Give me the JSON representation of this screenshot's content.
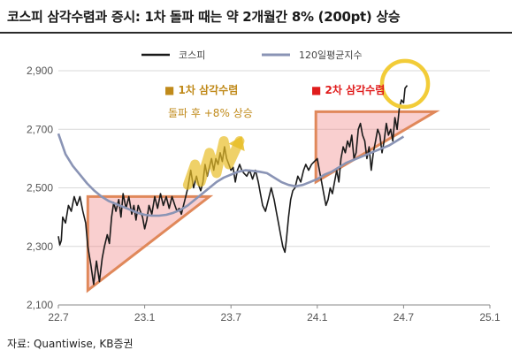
{
  "title": "코스피 삼각수렴과 증시: 1차 돌파 때는 약 2개월간 8% (200pt) 상승",
  "source": "자료: Quantiwise, KB증권",
  "chart_data": {
    "type": "line",
    "x_ticks": [
      {
        "label": "22.7",
        "t": 0
      },
      {
        "label": "23.1",
        "t": 6
      },
      {
        "label": "23.7",
        "t": 12
      },
      {
        "label": "24.1",
        "t": 18
      },
      {
        "label": "24.7",
        "t": 24
      },
      {
        "label": "25.1",
        "t": 30
      }
    ],
    "y_ticks": [
      2100,
      2300,
      2500,
      2700,
      2900
    ],
    "ylim": [
      2100,
      2900
    ],
    "grid": "horizontal",
    "legend_position": "top-right",
    "series": [
      {
        "name": "코스피",
        "color": "#1a1a1a",
        "points": [
          [
            0,
            2335
          ],
          [
            0.1,
            2305
          ],
          [
            0.2,
            2320
          ],
          [
            0.3,
            2400
          ],
          [
            0.5,
            2380
          ],
          [
            0.7,
            2440
          ],
          [
            0.9,
            2420
          ],
          [
            1.1,
            2470
          ],
          [
            1.3,
            2440
          ],
          [
            1.5,
            2470
          ],
          [
            1.7,
            2420
          ],
          [
            1.9,
            2380
          ],
          [
            2.05,
            2300
          ],
          [
            2.25,
            2240
          ],
          [
            2.45,
            2170
          ],
          [
            2.65,
            2250
          ],
          [
            2.85,
            2180
          ],
          [
            3.05,
            2260
          ],
          [
            3.2,
            2300
          ],
          [
            3.4,
            2340
          ],
          [
            3.55,
            2310
          ],
          [
            3.7,
            2400
          ],
          [
            3.85,
            2450
          ],
          [
            4.0,
            2420
          ],
          [
            4.2,
            2460
          ],
          [
            4.35,
            2400
          ],
          [
            4.5,
            2480
          ],
          [
            4.7,
            2430
          ],
          [
            4.9,
            2470
          ],
          [
            5.1,
            2410
          ],
          [
            5.25,
            2440
          ],
          [
            5.4,
            2390
          ],
          [
            5.55,
            2440
          ],
          [
            5.7,
            2420
          ],
          [
            5.85,
            2400
          ],
          [
            6.0,
            2360
          ],
          [
            6.15,
            2390
          ],
          [
            6.3,
            2440
          ],
          [
            6.5,
            2410
          ],
          [
            6.7,
            2470
          ],
          [
            6.9,
            2430
          ],
          [
            7.1,
            2480
          ],
          [
            7.3,
            2440
          ],
          [
            7.5,
            2470
          ],
          [
            7.7,
            2430
          ],
          [
            7.9,
            2470
          ],
          [
            8.1,
            2440
          ],
          [
            8.25,
            2420
          ],
          [
            8.4,
            2430
          ],
          [
            8.55,
            2410
          ],
          [
            8.7,
            2440
          ],
          [
            8.85,
            2470
          ],
          [
            9.0,
            2500
          ],
          [
            9.2,
            2560
          ],
          [
            9.4,
            2500
          ],
          [
            9.6,
            2540
          ],
          [
            9.75,
            2510
          ],
          [
            9.9,
            2490
          ],
          [
            10.05,
            2520
          ],
          [
            10.2,
            2580
          ],
          [
            10.35,
            2540
          ],
          [
            10.5,
            2570
          ],
          [
            10.65,
            2600
          ],
          [
            10.8,
            2560
          ],
          [
            10.95,
            2600
          ],
          [
            11.1,
            2580
          ],
          [
            11.25,
            2620
          ],
          [
            11.4,
            2590
          ],
          [
            11.55,
            2640
          ],
          [
            11.7,
            2600
          ],
          [
            11.85,
            2580
          ],
          [
            12.0,
            2560
          ],
          [
            12.15,
            2570
          ],
          [
            12.3,
            2520
          ],
          [
            12.45,
            2560
          ],
          [
            12.6,
            2580
          ],
          [
            12.75,
            2560
          ],
          [
            12.9,
            2550
          ],
          [
            13.1,
            2540
          ],
          [
            13.3,
            2560
          ],
          [
            13.5,
            2530
          ],
          [
            13.7,
            2560
          ],
          [
            13.9,
            2520
          ],
          [
            14.05,
            2480
          ],
          [
            14.2,
            2440
          ],
          [
            14.4,
            2420
          ],
          [
            14.6,
            2460
          ],
          [
            14.8,
            2500
          ],
          [
            15.0,
            2460
          ],
          [
            15.15,
            2420
          ],
          [
            15.3,
            2380
          ],
          [
            15.45,
            2340
          ],
          [
            15.6,
            2300
          ],
          [
            15.75,
            2280
          ],
          [
            15.85,
            2320
          ],
          [
            16.0,
            2400
          ],
          [
            16.15,
            2460
          ],
          [
            16.3,
            2490
          ],
          [
            16.45,
            2500
          ],
          [
            16.65,
            2540
          ],
          [
            16.85,
            2520
          ],
          [
            17.05,
            2560
          ],
          [
            17.2,
            2580
          ],
          [
            17.4,
            2560
          ],
          [
            17.6,
            2580
          ],
          [
            17.8,
            2590
          ],
          [
            18.0,
            2600
          ],
          [
            18.15,
            2560
          ],
          [
            18.3,
            2520
          ],
          [
            18.45,
            2480
          ],
          [
            18.6,
            2440
          ],
          [
            18.75,
            2460
          ],
          [
            18.9,
            2500
          ],
          [
            19.05,
            2480
          ],
          [
            19.2,
            2520
          ],
          [
            19.35,
            2560
          ],
          [
            19.5,
            2520
          ],
          [
            19.65,
            2600
          ],
          [
            19.8,
            2640
          ],
          [
            19.95,
            2620
          ],
          [
            20.1,
            2660
          ],
          [
            20.25,
            2640
          ],
          [
            20.4,
            2680
          ],
          [
            20.55,
            2600
          ],
          [
            20.7,
            2620
          ],
          [
            20.85,
            2700
          ],
          [
            21.0,
            2720
          ],
          [
            21.15,
            2680
          ],
          [
            21.3,
            2660
          ],
          [
            21.45,
            2600
          ],
          [
            21.6,
            2640
          ],
          [
            21.75,
            2560
          ],
          [
            21.9,
            2620
          ],
          [
            22.05,
            2660
          ],
          [
            22.2,
            2700
          ],
          [
            22.35,
            2680
          ],
          [
            22.5,
            2620
          ],
          [
            22.65,
            2660
          ],
          [
            22.8,
            2720
          ],
          [
            22.95,
            2680
          ],
          [
            23.1,
            2700
          ],
          [
            23.25,
            2660
          ],
          [
            23.4,
            2740
          ],
          [
            23.55,
            2700
          ],
          [
            23.7,
            2770
          ],
          [
            23.85,
            2800
          ],
          [
            24.0,
            2790
          ],
          [
            24.1,
            2840
          ],
          [
            24.25,
            2850
          ]
        ]
      },
      {
        "name": "120일평균지수",
        "color": "#8a94b5",
        "points": [
          [
            0,
            2685
          ],
          [
            0.5,
            2615
          ],
          [
            1.0,
            2575
          ],
          [
            1.5,
            2545
          ],
          [
            2.0,
            2515
          ],
          [
            2.5,
            2490
          ],
          [
            3.0,
            2470
          ],
          [
            3.5,
            2455
          ],
          [
            4.0,
            2445
          ],
          [
            4.5,
            2435
          ],
          [
            5.0,
            2425
          ],
          [
            5.5,
            2415
          ],
          [
            6.0,
            2408
          ],
          [
            6.5,
            2405
          ],
          [
            7.0,
            2405
          ],
          [
            7.5,
            2408
          ],
          [
            8.0,
            2415
          ],
          [
            8.5,
            2425
          ],
          [
            9.0,
            2440
          ],
          [
            9.5,
            2460
          ],
          [
            10.0,
            2480
          ],
          [
            10.5,
            2500
          ],
          [
            11.0,
            2520
          ],
          [
            11.5,
            2535
          ],
          [
            12.0,
            2545
          ],
          [
            12.5,
            2555
          ],
          [
            13.0,
            2560
          ],
          [
            13.5,
            2558
          ],
          [
            14.0,
            2555
          ],
          [
            14.5,
            2550
          ],
          [
            15.0,
            2535
          ],
          [
            15.5,
            2520
          ],
          [
            16.0,
            2510
          ],
          [
            16.5,
            2505
          ],
          [
            17.0,
            2510
          ],
          [
            17.5,
            2520
          ],
          [
            18.0,
            2530
          ],
          [
            18.5,
            2545
          ],
          [
            19.0,
            2555
          ],
          [
            19.5,
            2570
          ],
          [
            20.0,
            2585
          ],
          [
            20.5,
            2595
          ],
          [
            21.0,
            2605
          ],
          [
            21.5,
            2615
          ],
          [
            22.0,
            2625
          ],
          [
            22.5,
            2635
          ],
          [
            23.0,
            2645
          ],
          [
            23.5,
            2660
          ],
          [
            24.0,
            2675
          ]
        ]
      }
    ],
    "annotations": [
      {
        "type": "triangle",
        "points": [
          [
            2.05,
            2470
          ],
          [
            10.5,
            2470
          ],
          [
            2.05,
            2150
          ]
        ]
      },
      {
        "type": "triangle",
        "points": [
          [
            17.9,
            2760
          ],
          [
            26.2,
            2760
          ],
          [
            17.9,
            2520
          ]
        ]
      },
      {
        "type": "zigzag-arrow",
        "points": [
          [
            9.0,
            2510
          ],
          [
            9.5,
            2580
          ],
          [
            9.9,
            2520
          ],
          [
            10.5,
            2620
          ],
          [
            11.0,
            2550
          ],
          [
            11.5,
            2660
          ],
          [
            11.85,
            2580
          ],
          [
            12.6,
            2660
          ]
        ]
      },
      {
        "type": "circle",
        "center": [
          24.1,
          2855
        ],
        "radius_t": 1.6
      },
      {
        "label": "■ 1차 삼각수렴",
        "style": "gold"
      },
      {
        "label": "돌파 후 +8% 상승",
        "style": "gold"
      },
      {
        "label": "■ 2차 삼각수렴",
        "style": "red"
      }
    ]
  }
}
